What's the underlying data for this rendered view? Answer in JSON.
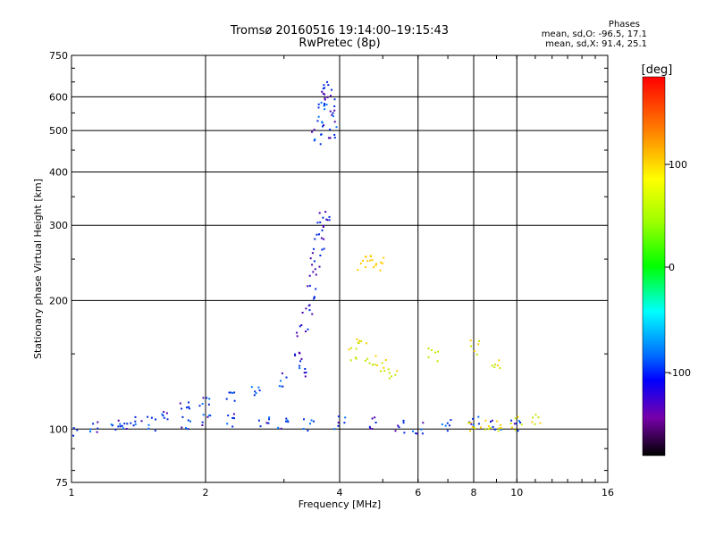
{
  "header": {
    "title": "Tromsø 20160516 19:14:00–19:15:43",
    "subtitle": "RwPretec (8p)"
  },
  "phase_stats": {
    "heading": "Phases",
    "line_o": "mean, sd,O: -96.5, 17.1",
    "line_x": "mean, sd,X:  91.4, 25.1"
  },
  "colorbar": {
    "label": "[deg]",
    "ticks": [
      "100",
      "0",
      "-100"
    ]
  },
  "chart_data": {
    "type": "scatter",
    "title": "Tromsø 20160516 19:14:00–19:15:43",
    "subtitle": "RwPretec (8p)",
    "xlabel": "Frequency [MHz]",
    "ylabel": "Stationary phase Virtual Height [km]",
    "xscale": "log",
    "yscale": "log",
    "xlim": [
      1,
      16
    ],
    "ylim": [
      75,
      750
    ],
    "xticks": [
      1,
      2,
      4,
      6,
      8,
      10,
      16
    ],
    "yticks": [
      75,
      100,
      200,
      300,
      400,
      500,
      600,
      750
    ],
    "grid": true,
    "colorscale": "rainbow (phase, degrees)",
    "series": [
      {
        "clusters": [
          {
            "x": [
              1.0,
              1.12,
              1.25,
              1.4,
              1.6,
              1.8,
              2.0,
              2.3,
              2.6,
              3.0,
              3.3
            ],
            "y": [
              98,
              101,
              103,
              105,
              108,
              111,
              115,
              120,
              125,
              130,
              138
            ],
            "phase": -100
          },
          {
            "x": [
              1.3,
              1.5,
              1.8,
              2.0,
              2.3,
              2.7,
              3.0,
              3.4,
              4.0,
              4.8,
              5.5,
              6.0,
              7.0,
              8.0,
              9.0,
              10.0
            ],
            "y": [
              102,
              103,
              104,
              105,
              105,
              104,
              104,
              103,
              104,
              103,
              102,
              101,
              102,
              103,
              102,
              101
            ],
            "phase": -100
          },
          {
            "x": [
              3.2,
              3.3,
              3.4,
              3.45,
              3.5,
              3.55,
              3.6,
              3.65,
              3.7
            ],
            "y": [
              150,
              170,
              190,
              210,
              235,
              255,
              275,
              300,
              320
            ],
            "phase": -110
          },
          {
            "x": [
              3.55,
              3.6,
              3.65,
              3.7,
              3.75,
              3.8,
              3.85,
              3.9
            ],
            "y": [
              480,
              520,
              560,
              600,
              640,
              590,
              540,
              500
            ],
            "phase": -100
          },
          {
            "x": [
              4.3,
              4.5,
              4.7,
              5.0,
              5.3,
              6.5,
              8.0,
              9.0
            ],
            "y": [
              150,
              160,
              145,
              140,
              135,
              150,
              155,
              140
            ],
            "phase": 90
          },
          {
            "x": [
              4.5,
              4.7,
              4.9
            ],
            "y": [
              245,
              250,
              245
            ],
            "phase": 120
          },
          {
            "x": [
              8.0,
              8.5,
              9.0,
              10.0,
              11.0
            ],
            "y": [
              100,
              102,
              101,
              103,
              105
            ],
            "phase": 100
          }
        ]
      }
    ]
  }
}
